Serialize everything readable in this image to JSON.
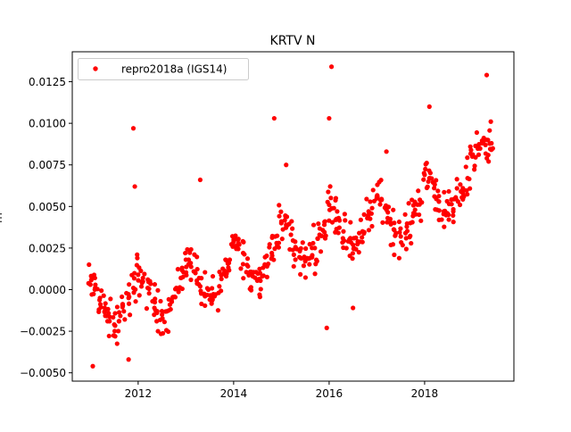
{
  "chart_data": {
    "type": "scatter",
    "title": "KRTV N",
    "xlabel": "",
    "ylabel": "m",
    "xlim": [
      2010.62,
      2019.87
    ],
    "ylim": [
      -0.0055,
      0.0143
    ],
    "grid": false,
    "legend": {
      "placement": "top-left",
      "entries": [
        "repro2018a (IGS14)"
      ]
    },
    "x_ticks": [
      2012,
      2014,
      2016,
      2018
    ],
    "x_tick_labels": [
      "2012",
      "2014",
      "2016",
      "2018"
    ],
    "y_ticks": [
      -0.005,
      -0.0025,
      0,
      0.0025,
      0.005,
      0.0075,
      0.01,
      0.0125
    ],
    "y_tick_labels": [
      "−0.0050",
      "−0.0025",
      "0.0000",
      "0.0025",
      "0.0050",
      "0.0075",
      "0.0100",
      "0.0125"
    ],
    "series": [
      {
        "name": "repro2018a (IGS14)",
        "color": "#ff0000",
        "x": [
          2011.0,
          2011.1,
          2011.2,
          2011.3,
          2011.4,
          2011.5,
          2011.6,
          2011.7,
          2011.8,
          2011.9,
          2012.0,
          2012.1,
          2012.2,
          2012.3,
          2012.4,
          2012.5,
          2012.6,
          2012.7,
          2012.8,
          2012.9,
          2013.0,
          2013.1,
          2013.2,
          2013.3,
          2013.4,
          2013.5,
          2013.6,
          2013.7,
          2013.8,
          2013.9,
          2014.0,
          2014.1,
          2014.2,
          2014.3,
          2014.4,
          2014.5,
          2014.6,
          2014.7,
          2014.8,
          2014.9,
          2015.0,
          2015.1,
          2015.2,
          2015.3,
          2015.4,
          2015.5,
          2015.6,
          2015.7,
          2015.8,
          2015.9,
          2016.0,
          2016.1,
          2016.2,
          2016.3,
          2016.4,
          2016.5,
          2016.6,
          2016.7,
          2016.8,
          2016.9,
          2017.0,
          2017.1,
          2017.2,
          2017.3,
          2017.4,
          2017.5,
          2017.6,
          2017.7,
          2017.8,
          2017.9,
          2018.0,
          2018.1,
          2018.2,
          2018.3,
          2018.4,
          2018.5,
          2018.6,
          2018.7,
          2018.8,
          2018.9,
          2019.0,
          2019.1,
          2019.2,
          2019.3,
          2019.4
        ],
        "y": [
          0.0003,
          0.0001,
          -0.0005,
          -0.0013,
          -0.0019,
          -0.0021,
          -0.0019,
          -0.0013,
          -0.0005,
          0.0001,
          0.0009,
          0.0007,
          0.0001,
          -0.0007,
          -0.0013,
          -0.0015,
          -0.0013,
          -0.0007,
          0.0001,
          0.0007,
          0.0018,
          0.0016,
          0.001,
          0.0002,
          -0.0004,
          -0.0006,
          -0.0004,
          0.0002,
          0.001,
          0.0016,
          0.003,
          0.0028,
          0.0022,
          0.0014,
          0.0008,
          0.0006,
          0.0008,
          0.0014,
          0.0022,
          0.0028,
          0.0041,
          0.0039,
          0.0033,
          0.0025,
          0.0019,
          0.0017,
          0.0019,
          0.0025,
          0.0033,
          0.0039,
          0.0051,
          0.0049,
          0.0043,
          0.0035,
          0.0029,
          0.0027,
          0.0029,
          0.0035,
          0.0043,
          0.0049,
          0.0056,
          0.0054,
          0.0048,
          0.004,
          0.0034,
          0.0032,
          0.0034,
          0.004,
          0.0048,
          0.0054,
          0.0069,
          0.0067,
          0.0061,
          0.0053,
          0.0047,
          0.0045,
          0.0047,
          0.0053,
          0.0061,
          0.0067,
          0.008,
          0.0086,
          0.0088,
          0.009,
          0.0088
        ],
        "scatter_spread": 0.0012,
        "outliers": [
          [
            2011.9,
            0.0097
          ],
          [
            2011.93,
            0.0062
          ],
          [
            2014.85,
            0.0103
          ],
          [
            2016.05,
            0.0134
          ],
          [
            2015.95,
            -0.0023
          ],
          [
            2016.5,
            -0.0011
          ],
          [
            2019.3,
            0.0129
          ],
          [
            2011.05,
            -0.0046
          ],
          [
            2011.8,
            -0.0042
          ],
          [
            2017.2,
            0.0083
          ],
          [
            2018.1,
            0.011
          ],
          [
            2013.3,
            0.0066
          ],
          [
            2015.1,
            0.0075
          ],
          [
            2016.0,
            0.0103
          ]
        ]
      }
    ]
  }
}
